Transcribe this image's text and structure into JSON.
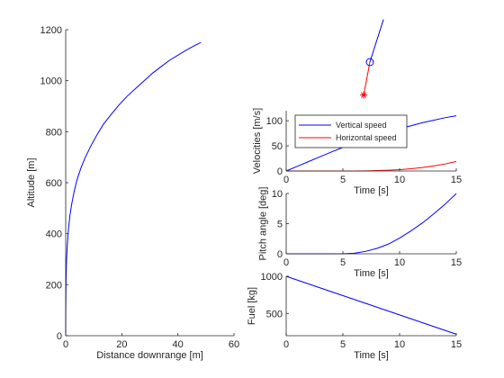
{
  "chart_data": [
    {
      "type": "line",
      "xlabel": "Distance downrange [m]",
      "ylabel": "Altitude [m]",
      "xlim": [
        0,
        60
      ],
      "ylim": [
        0,
        1200
      ],
      "xticks": [
        "0",
        "20",
        "40",
        "60"
      ],
      "yticks": [
        "0",
        "200",
        "400",
        "600",
        "800",
        "1000",
        "1200"
      ],
      "grid": false,
      "series": [
        {
          "color": "#0000ff",
          "x": [
            0,
            0.02,
            0.1,
            0.3,
            0.6,
            1,
            1.5,
            2.2,
            3,
            4,
            5.5,
            7,
            9,
            11,
            13.5,
            16,
            19,
            22,
            25,
            28,
            31,
            34,
            37,
            40,
            43,
            46,
            48.2
          ],
          "y": [
            0,
            100,
            200,
            300,
            360,
            420,
            470,
            520,
            565,
            610,
            660,
            700,
            745,
            785,
            830,
            865,
            905,
            940,
            970,
            1000,
            1030,
            1055,
            1080,
            1100,
            1120,
            1138,
            1150
          ]
        }
      ]
    },
    {
      "type": "scatter",
      "grid": false,
      "description_free": true,
      "series": [
        {
          "color": "#0000ff",
          "x": [
            0,
            0.35
          ],
          "y": [
            0,
            1.1
          ]
        }
      ],
      "markers": [
        {
          "symbol": "circle",
          "color": "#0000ff",
          "x": 0,
          "y": 0
        },
        {
          "symbol": "asterisk",
          "color": "#ff0000",
          "x": -0.16,
          "y": -0.85
        }
      ],
      "stems": [
        {
          "color": "#ff0000",
          "x": [
            0,
            -0.16
          ],
          "y": [
            0,
            -0.85
          ]
        }
      ]
    },
    {
      "type": "line",
      "xlabel": "Time [s]",
      "ylabel": "Velocities [m/s]",
      "xlim": [
        0,
        15
      ],
      "ylim": [
        0,
        120
      ],
      "xticks": [
        "0",
        "5",
        "10",
        "15"
      ],
      "yticks": [
        "0",
        "50",
        "100"
      ],
      "legend_position": "top-left",
      "grid": false,
      "series": [
        {
          "name": "Vertical speed",
          "color": "#0000ff",
          "x": [
            0,
            1,
            2,
            3,
            4,
            5,
            6,
            7,
            8,
            9,
            10,
            11,
            12,
            13,
            14,
            15
          ],
          "y": [
            0,
            9.5,
            19,
            28.5,
            38,
            47,
            56,
            64,
            71,
            78,
            84,
            90,
            96,
            101,
            106,
            110
          ]
        },
        {
          "name": "Horizontal speed",
          "color": "#ff0000",
          "x": [
            0,
            5,
            6,
            7,
            8,
            9,
            10,
            11,
            12,
            13,
            14,
            15
          ],
          "y": [
            0,
            0,
            0.1,
            0.3,
            0.8,
            1.6,
            2.8,
            4.5,
            7,
            10,
            14,
            19
          ]
        }
      ]
    },
    {
      "type": "line",
      "xlabel": "Time [s]",
      "ylabel": "Pitch angle [deg]",
      "xlim": [
        0,
        15
      ],
      "ylim": [
        0,
        10
      ],
      "xticks": [
        "0",
        "5",
        "10",
        "15"
      ],
      "yticks": [
        "0",
        "5",
        "10"
      ],
      "grid": false,
      "series": [
        {
          "color": "#0000ff",
          "x": [
            0,
            5,
            6,
            7,
            8,
            9,
            10,
            11,
            12,
            13,
            14,
            15
          ],
          "y": [
            0,
            0,
            0.1,
            0.4,
            0.9,
            1.6,
            2.6,
            3.8,
            5.1,
            6.6,
            8.2,
            10
          ]
        }
      ]
    },
    {
      "type": "line",
      "xlabel": "Time [s]",
      "ylabel": "Fuel [kg]",
      "xlim": [
        0,
        15
      ],
      "ylim": [
        200,
        1000
      ],
      "xticks": [
        "0",
        "5",
        "10",
        "15"
      ],
      "yticks": [
        "500",
        "1000"
      ],
      "grid": false,
      "series": [
        {
          "color": "#0000ff",
          "x": [
            0,
            15
          ],
          "y": [
            1000,
            220
          ]
        }
      ]
    }
  ]
}
